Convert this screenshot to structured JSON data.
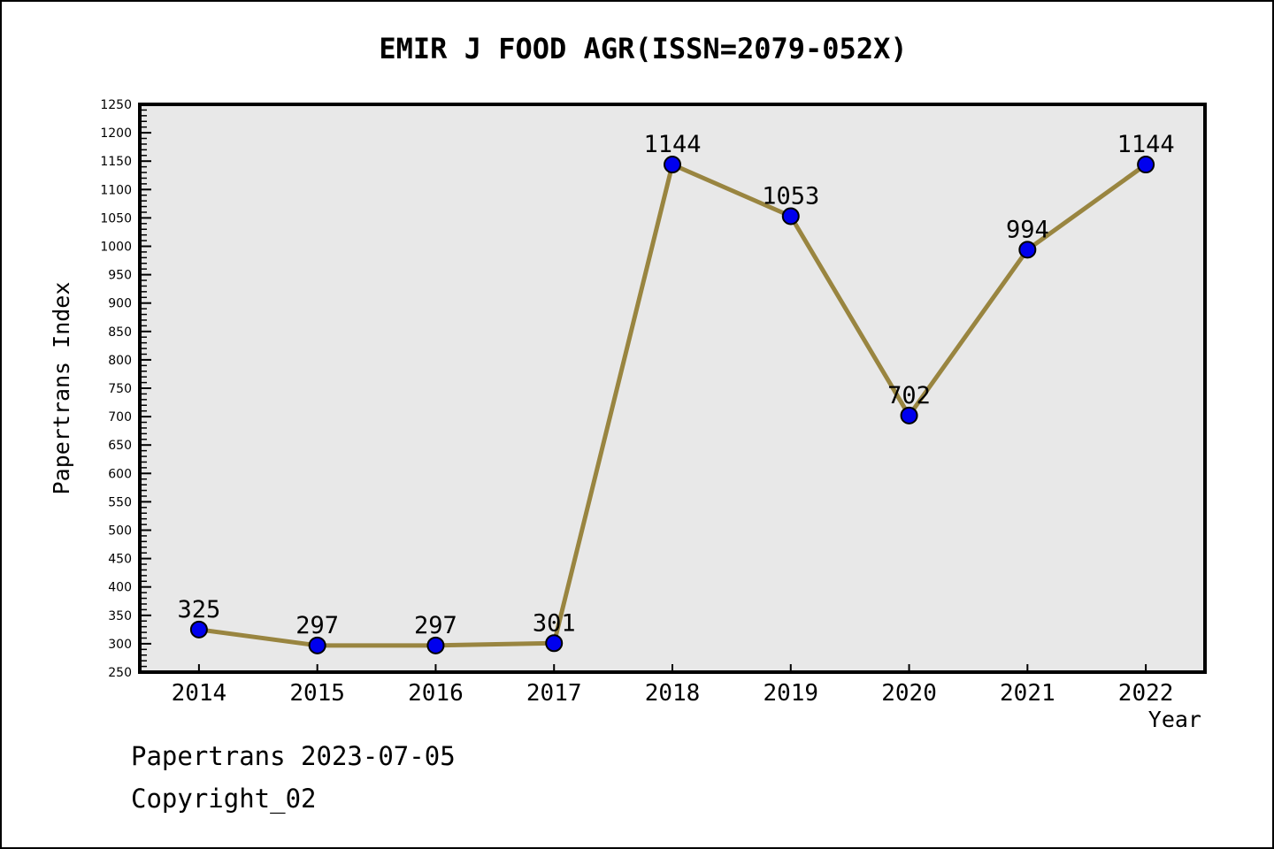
{
  "title": "EMIR J FOOD AGR(ISSN=2079-052X)",
  "footer": {
    "line1": "Papertrans 2023-07-05",
    "line2": "Copyright_02"
  },
  "chart_data": {
    "type": "line",
    "title": "EMIR J FOOD AGR(ISSN=2079-052X)",
    "x": [
      2014,
      2015,
      2016,
      2017,
      2018,
      2019,
      2020,
      2021,
      2022
    ],
    "values": [
      325,
      297,
      297,
      301,
      1144,
      1053,
      702,
      994,
      1144
    ],
    "point_labels": [
      "325",
      "297",
      "297",
      "301",
      "1144",
      "1053",
      "702",
      "994",
      "1144"
    ],
    "xlabel": "Year",
    "ylabel": "Papertrans Index",
    "xlim": [
      2013.5,
      2022.5
    ],
    "ylim": [
      250,
      1250
    ],
    "y_major_step": 50,
    "y_minor_step": 10,
    "grid": false,
    "legend": null,
    "colors": {
      "line": "#998540",
      "marker_fill": "#0000EE",
      "marker_edge": "#000000",
      "plot_bg": "#E8E8E8",
      "spine": "#000000",
      "text": "#000000"
    }
  }
}
